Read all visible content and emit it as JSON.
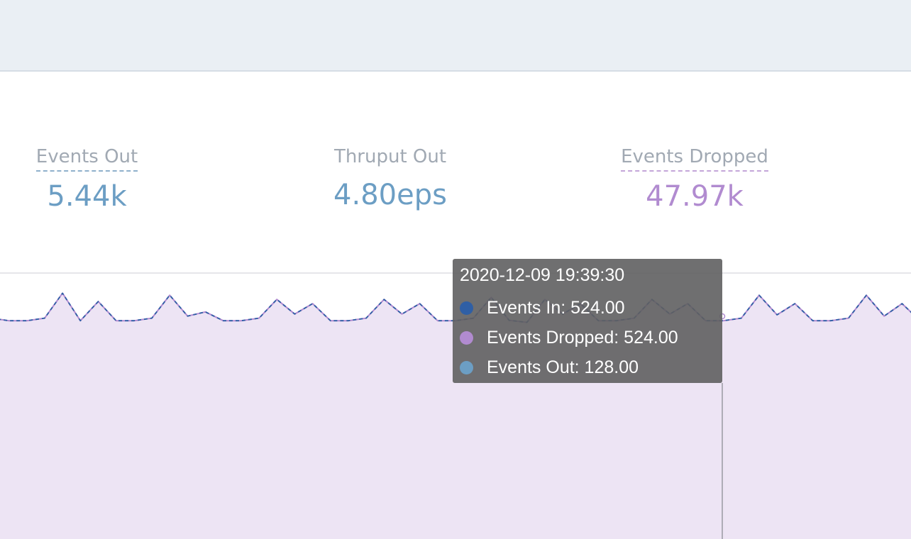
{
  "stats": [
    {
      "label": "Events Out",
      "value": "5.44k"
    },
    {
      "label": "Thruput Out",
      "value": "4.80eps"
    },
    {
      "label": "Events Dropped",
      "value": "47.97k"
    }
  ],
  "colors": {
    "events_in": "#2f5fa5",
    "events_dropped": "#b18bd0",
    "events_out": "#6c9ec4",
    "area_fill": "#ede4f4"
  },
  "tooltip": {
    "title": "2020-12-09 19:39:30",
    "rows": [
      {
        "label": "Events In: 524.00",
        "color": "#2f5fa5"
      },
      {
        "label": "Events Dropped: 524.00",
        "color": "#b18bd0"
      },
      {
        "label": "Events Out: 128.00",
        "color": "#6c9ec4"
      }
    ]
  },
  "chart_data": {
    "type": "area",
    "series": [
      {
        "name": "Events In"
      },
      {
        "name": "Events Dropped"
      },
      {
        "name": "Events Out"
      }
    ],
    "values": [
      530,
      524,
      524,
      530,
      590,
      524,
      570,
      524,
      524,
      530,
      585,
      535,
      545,
      524,
      524,
      530,
      575,
      540,
      565,
      524,
      524,
      530,
      575,
      540,
      565,
      524,
      524,
      530,
      580,
      525,
      520,
      575,
      540,
      565,
      524,
      524,
      530,
      575,
      540,
      565,
      524,
      524,
      530,
      585,
      538,
      565,
      524,
      524,
      530,
      585,
      535,
      565,
      524
    ],
    "highlight_index": 39,
    "ylim": [
      0,
      640
    ],
    "grid": true
  }
}
